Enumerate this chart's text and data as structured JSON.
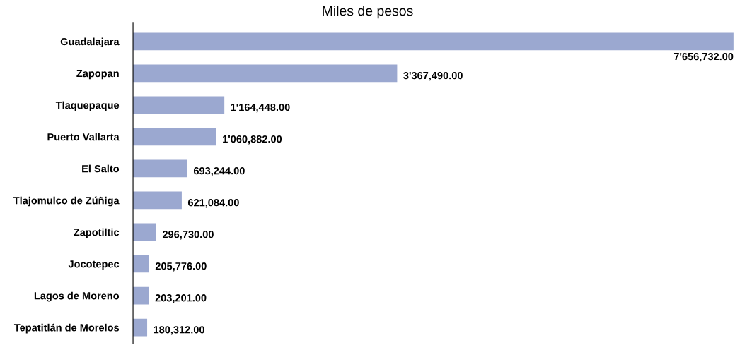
{
  "chart_data": {
    "type": "bar",
    "orientation": "horizontal",
    "title": "Miles de pesos",
    "categories": [
      "Guadalajara",
      "Zapopan",
      "Tlaquepaque",
      "Puerto Vallarta",
      "El Salto",
      "Tlajomulco de Zúñiga",
      "Zapotiltic",
      "Jocotepec",
      "Lagos de Moreno",
      "Tepatitlán de Morelos"
    ],
    "values": [
      7656732.0,
      3367490.0,
      1164448.0,
      1060882.0,
      693244.0,
      621084.0,
      296730.0,
      205776.0,
      203201.0,
      180312.0
    ],
    "value_labels": [
      "7'656,732.00",
      "3'367,490.00",
      "1'164,448.00",
      "1'060,882.00",
      "693,244.00",
      "621,084.00",
      "296,730.00",
      "205,776.00",
      "203,201.00",
      "180,312.00"
    ],
    "color": "#9ba8d0",
    "grid": false,
    "legend": false
  }
}
